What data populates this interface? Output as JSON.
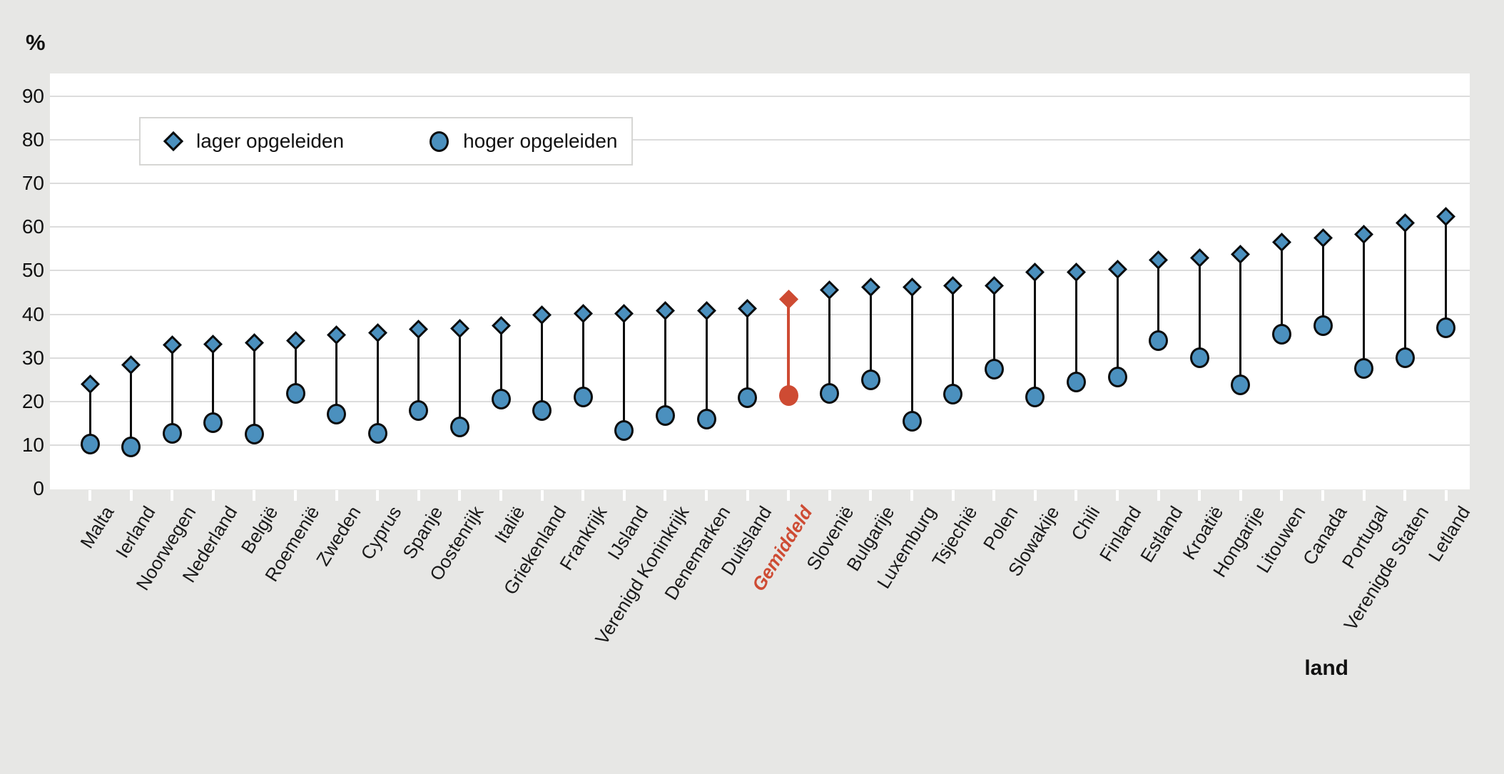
{
  "page": {
    "unit_label": "%",
    "axis_title": "land"
  },
  "colors": {
    "background": "#e7e7e5",
    "plot_background": "#ffffff",
    "gridline": "#dcdcdc",
    "x_tick": "#ffffff",
    "marker_blue_fill": "#4b90be",
    "marker_outline": "#0b0b0b",
    "highlight_red": "#ce4b33",
    "text": "#1a1a1a"
  },
  "legend": {
    "items": [
      {
        "label": "lager opgeleiden",
        "marker": "diamond"
      },
      {
        "label": "hoger opgeleiden",
        "marker": "circle"
      }
    ]
  },
  "chart_data": {
    "type": "scatter",
    "subtype": "dumbbell-range",
    "title": "",
    "ylabel": "%",
    "xlabel": "land",
    "ylim": [
      0,
      95
    ],
    "yticks": [
      0,
      10,
      20,
      30,
      40,
      50,
      60,
      70,
      80,
      90
    ],
    "grid": "horizontal",
    "legend_position": "top-left-inside",
    "highlight_category": "Gemiddeld",
    "series": [
      {
        "name": "lager opgeleiden",
        "marker": "diamond"
      },
      {
        "name": "hoger opgeleiden",
        "marker": "circle"
      }
    ],
    "points": [
      {
        "land": "Malta",
        "lager_opgeleiden": 24.0,
        "hoger_opgeleiden": 10.3
      },
      {
        "land": "Ierland",
        "lager_opgeleiden": 28.4,
        "hoger_opgeleiden": 9.5
      },
      {
        "land": "Noorwegen",
        "lager_opgeleiden": 33.0,
        "hoger_opgeleiden": 12.7
      },
      {
        "land": "Nederland",
        "lager_opgeleiden": 33.2,
        "hoger_opgeleiden": 15.1
      },
      {
        "land": "België",
        "lager_opgeleiden": 33.5,
        "hoger_opgeleiden": 12.6
      },
      {
        "land": "Roemenië",
        "lager_opgeleiden": 34.0,
        "hoger_opgeleiden": 21.9
      },
      {
        "land": "Zweden",
        "lager_opgeleiden": 35.2,
        "hoger_opgeleiden": 17.1
      },
      {
        "land": "Cyprus",
        "lager_opgeleiden": 35.7,
        "hoger_opgeleiden": 12.7
      },
      {
        "land": "Spanje",
        "lager_opgeleiden": 36.6,
        "hoger_opgeleiden": 18.0
      },
      {
        "land": "Oostenrijk",
        "lager_opgeleiden": 36.8,
        "hoger_opgeleiden": 14.2
      },
      {
        "land": "Italië",
        "lager_opgeleiden": 37.4,
        "hoger_opgeleiden": 20.6
      },
      {
        "land": "Griekenland",
        "lager_opgeleiden": 39.9,
        "hoger_opgeleiden": 17.9
      },
      {
        "land": "Frankrijk",
        "lager_opgeleiden": 40.1,
        "hoger_opgeleiden": 21.0
      },
      {
        "land": "IJsland",
        "lager_opgeleiden": 40.2,
        "hoger_opgeleiden": 13.4
      },
      {
        "land": "Verenigd Koninkrijk",
        "lager_opgeleiden": 40.8,
        "hoger_opgeleiden": 16.8
      },
      {
        "land": "Denemarken",
        "lager_opgeleiden": 40.8,
        "hoger_opgeleiden": 16.0
      },
      {
        "land": "Duitsland",
        "lager_opgeleiden": 41.4,
        "hoger_opgeleiden": 20.9
      },
      {
        "land": "Gemiddeld",
        "lager_opgeleiden": 43.5,
        "hoger_opgeleiden": 21.4
      },
      {
        "land": "Slovenië",
        "lager_opgeleiden": 45.6,
        "hoger_opgeleiden": 21.8
      },
      {
        "land": "Bulgarije",
        "lager_opgeleiden": 46.2,
        "hoger_opgeleiden": 25.0
      },
      {
        "land": "Luxemburg",
        "lager_opgeleiden": 46.3,
        "hoger_opgeleiden": 15.4
      },
      {
        "land": "Tsjechië",
        "lager_opgeleiden": 46.6,
        "hoger_opgeleiden": 21.7
      },
      {
        "land": "Polen",
        "lager_opgeleiden": 46.6,
        "hoger_opgeleiden": 27.4
      },
      {
        "land": "Slowakije",
        "lager_opgeleiden": 49.7,
        "hoger_opgeleiden": 21.0
      },
      {
        "land": "Chili",
        "lager_opgeleiden": 49.7,
        "hoger_opgeleiden": 24.5
      },
      {
        "land": "Finland",
        "lager_opgeleiden": 50.3,
        "hoger_opgeleiden": 25.6
      },
      {
        "land": "Estland",
        "lager_opgeleiden": 52.5,
        "hoger_opgeleiden": 33.9
      },
      {
        "land": "Kroatië",
        "lager_opgeleiden": 53.0,
        "hoger_opgeleiden": 30.0
      },
      {
        "land": "Hongarije",
        "lager_opgeleiden": 53.7,
        "hoger_opgeleiden": 23.8
      },
      {
        "land": "Litouwen",
        "lager_opgeleiden": 56.6,
        "hoger_opgeleiden": 35.5
      },
      {
        "land": "Canada",
        "lager_opgeleiden": 57.6,
        "hoger_opgeleiden": 37.4
      },
      {
        "land": "Portugal",
        "lager_opgeleiden": 58.3,
        "hoger_opgeleiden": 27.6
      },
      {
        "land": "Verenigde Staten",
        "lager_opgeleiden": 61.0,
        "hoger_opgeleiden": 30.0
      },
      {
        "land": "Letland",
        "lager_opgeleiden": 62.4,
        "hoger_opgeleiden": 36.9
      }
    ]
  }
}
